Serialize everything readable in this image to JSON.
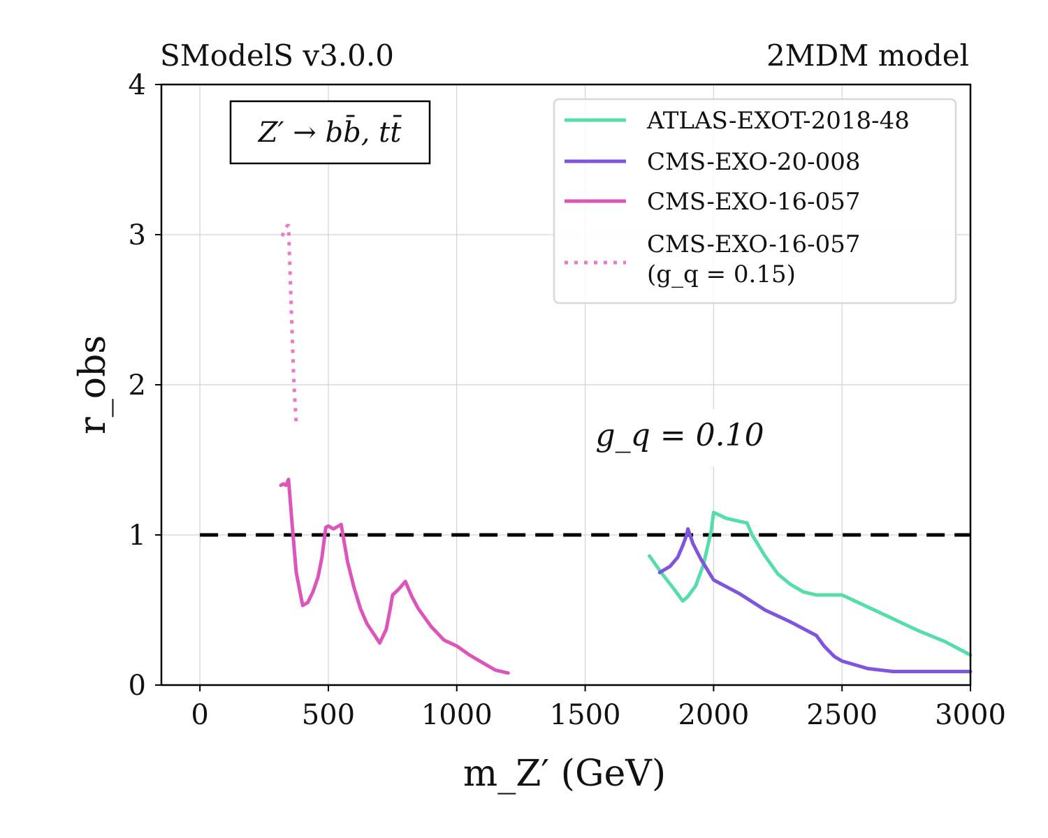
{
  "header": {
    "left": "SModelS v3.0.0",
    "right": "2MDM model"
  },
  "annotation": {
    "process": "Z′ → bb̄, tt̄",
    "coupling": "g_q = 0.10"
  },
  "chart_data": {
    "type": "line",
    "title": "",
    "xlabel": "m_Z′ (GeV)",
    "ylabel": "r_obs",
    "xlim": [
      -150,
      3000
    ],
    "ylim": [
      0,
      4
    ],
    "xticks": [
      0,
      500,
      1000,
      1500,
      2000,
      2500,
      3000
    ],
    "yticks": [
      0,
      1,
      2,
      3,
      4
    ],
    "grid": true,
    "legend_position": "top-right",
    "reference_line": {
      "y": 1,
      "x_range": [
        0,
        3000
      ],
      "style": "dashed",
      "color": "#000000"
    },
    "series": [
      {
        "name": "ATLAS-EXOT-2018-48",
        "color": "#55ddaa",
        "style": "solid",
        "x": [
          1750,
          1800,
          1850,
          1880,
          1900,
          1930,
          1960,
          1990,
          2000,
          2025,
          2050,
          2100,
          2130,
          2150,
          2200,
          2250,
          2300,
          2350,
          2400,
          2450,
          2500,
          2600,
          2700,
          2800,
          2900,
          3000
        ],
        "y": [
          0.86,
          0.74,
          0.63,
          0.56,
          0.59,
          0.66,
          0.8,
          1.02,
          1.15,
          1.13,
          1.11,
          1.09,
          1.08,
          1.0,
          0.86,
          0.74,
          0.67,
          0.62,
          0.6,
          0.6,
          0.6,
          0.52,
          0.44,
          0.36,
          0.29,
          0.2
        ]
      },
      {
        "name": "CMS-EXO-20-008",
        "color": "#7f55dd",
        "style": "solid",
        "x": [
          1790,
          1830,
          1860,
          1880,
          1895,
          1900,
          1920,
          1950,
          2000,
          2100,
          2200,
          2300,
          2400,
          2430,
          2470,
          2500,
          2600,
          2700,
          2800,
          2900,
          3000
        ],
        "y": [
          0.75,
          0.79,
          0.85,
          0.93,
          1.0,
          1.04,
          0.94,
          0.84,
          0.7,
          0.61,
          0.5,
          0.42,
          0.33,
          0.26,
          0.19,
          0.16,
          0.11,
          0.09,
          0.09,
          0.09,
          0.09
        ]
      },
      {
        "name": "CMS-EXO-16-057",
        "color": "#dd55bb",
        "style": "solid",
        "x": [
          315,
          325,
          335,
          345,
          360,
          375,
          400,
          420,
          440,
          460,
          475,
          490,
          500,
          510,
          520,
          540,
          550,
          575,
          600,
          625,
          650,
          700,
          725,
          740,
          750,
          775,
          800,
          825,
          850,
          900,
          950,
          1000,
          1050,
          1100,
          1150,
          1200
        ],
        "y": [
          1.33,
          1.34,
          1.33,
          1.37,
          1.05,
          0.75,
          0.53,
          0.55,
          0.62,
          0.72,
          0.85,
          1.05,
          1.06,
          1.05,
          1.04,
          1.06,
          1.07,
          0.82,
          0.65,
          0.51,
          0.41,
          0.28,
          0.37,
          0.5,
          0.6,
          0.64,
          0.69,
          0.59,
          0.51,
          0.39,
          0.3,
          0.26,
          0.2,
          0.15,
          0.1,
          0.08
        ]
      },
      {
        "name": "CMS-EXO-16-057",
        "name_line2": "(g_q = 0.15)",
        "color": "#ee77cc",
        "style": "dotted",
        "x": [
          320,
          330,
          340,
          345,
          355,
          365,
          375
        ],
        "y": [
          2.99,
          3.03,
          3.06,
          3.06,
          2.55,
          2.05,
          1.73
        ]
      }
    ]
  }
}
